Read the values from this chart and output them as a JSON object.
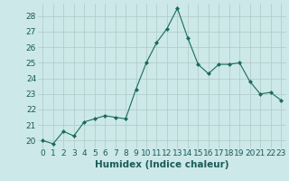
{
  "x": [
    0,
    1,
    2,
    3,
    4,
    5,
    6,
    7,
    8,
    9,
    10,
    11,
    12,
    13,
    14,
    15,
    16,
    17,
    18,
    19,
    20,
    21,
    22,
    23
  ],
  "y": [
    20.0,
    19.8,
    20.6,
    20.3,
    21.2,
    21.4,
    21.6,
    21.5,
    21.4,
    23.3,
    25.0,
    26.3,
    27.2,
    28.5,
    26.6,
    24.9,
    24.3,
    24.9,
    24.9,
    25.0,
    23.8,
    23.0,
    23.1,
    22.6
  ],
  "xlabel": "Humidex (Indice chaleur)",
  "ylim": [
    19.5,
    28.8
  ],
  "xlim": [
    -0.5,
    23.5
  ],
  "yticks": [
    20,
    21,
    22,
    23,
    24,
    25,
    26,
    27,
    28
  ],
  "xticks": [
    0,
    1,
    2,
    3,
    4,
    5,
    6,
    7,
    8,
    9,
    10,
    11,
    12,
    13,
    14,
    15,
    16,
    17,
    18,
    19,
    20,
    21,
    22,
    23
  ],
  "line_color": "#1a6b5a",
  "marker": "D",
  "marker_size": 2.0,
  "bg_color": "#cce8e8",
  "grid_color": "#b0c8c8",
  "xlabel_fontsize": 7.5,
  "tick_fontsize": 6.5
}
